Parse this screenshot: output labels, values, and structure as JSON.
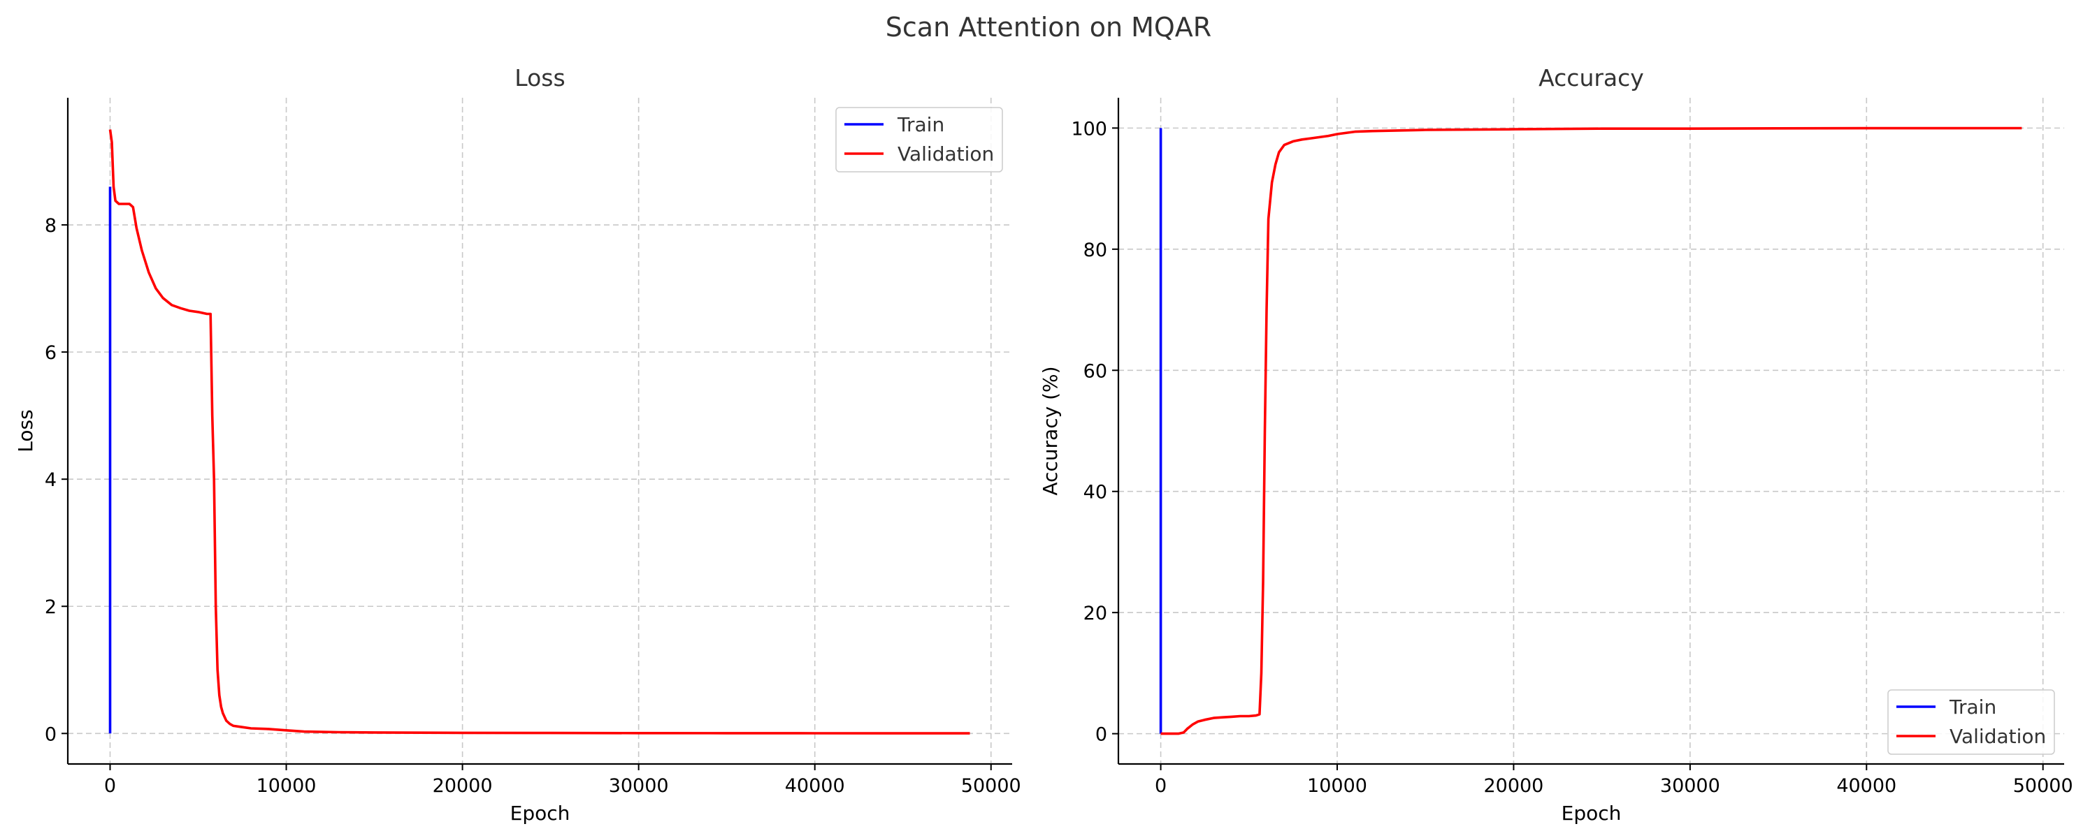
{
  "suptitle": "Scan Attention on MQAR",
  "colors": {
    "train": "#0000ff",
    "validation": "#ff0000",
    "grid": "#c8c8c8"
  },
  "chart_data": [
    {
      "type": "line",
      "title": "Loss",
      "xlabel": "Epoch",
      "ylabel": "Loss",
      "xlim": [
        -2400,
        51200
      ],
      "ylim": [
        -0.48,
        10.0
      ],
      "xticks": [
        0,
        10000,
        20000,
        30000,
        40000,
        50000
      ],
      "yticks": [
        0,
        2,
        4,
        6,
        8
      ],
      "grid": true,
      "legend_position": "top-right",
      "series": [
        {
          "name": "Train",
          "color": "#0000ff",
          "x": [
            0,
            0
          ],
          "y": [
            8.6,
            0
          ]
        },
        {
          "name": "Validation",
          "color": "#ff0000",
          "x": [
            0,
            100,
            200,
            300,
            500,
            800,
            1100,
            1300,
            1500,
            1800,
            2200,
            2600,
            3000,
            3500,
            4000,
            4500,
            5000,
            5500,
            5700,
            5800,
            5900,
            6000,
            6100,
            6200,
            6300,
            6400,
            6600,
            6800,
            7000,
            7500,
            8000,
            9000,
            10000,
            11000,
            13000,
            15000,
            20000,
            25000,
            30000,
            35000,
            40000,
            48800
          ],
          "y": [
            9.5,
            9.3,
            8.6,
            8.38,
            8.33,
            8.33,
            8.33,
            8.28,
            7.95,
            7.6,
            7.25,
            7.0,
            6.85,
            6.74,
            6.69,
            6.65,
            6.63,
            6.6,
            6.6,
            5.0,
            4.0,
            2.0,
            1.0,
            0.6,
            0.42,
            0.32,
            0.2,
            0.15,
            0.12,
            0.1,
            0.08,
            0.07,
            0.05,
            0.03,
            0.02,
            0.015,
            0.01,
            0.008,
            0.006,
            0.004,
            0.003,
            0.002
          ]
        }
      ]
    },
    {
      "type": "line",
      "title": "Accuracy",
      "xlabel": "Epoch",
      "ylabel": "Accuracy (%)",
      "xlim": [
        -2400,
        51200
      ],
      "ylim": [
        -5,
        105
      ],
      "xticks": [
        0,
        10000,
        20000,
        30000,
        40000,
        50000
      ],
      "yticks": [
        0,
        20,
        40,
        60,
        80,
        100
      ],
      "grid": true,
      "legend_position": "bottom-right",
      "series": [
        {
          "name": "Train",
          "color": "#0000ff",
          "x": [
            0,
            0
          ],
          "y": [
            100,
            0
          ]
        },
        {
          "name": "Validation",
          "color": "#ff0000",
          "x": [
            0,
            500,
            1000,
            1300,
            1500,
            1800,
            2100,
            2500,
            3000,
            3500,
            4000,
            4500,
            5000,
            5400,
            5600,
            5700,
            5800,
            5900,
            6000,
            6100,
            6200,
            6300,
            6500,
            6700,
            7000,
            7500,
            8000,
            8500,
            9000,
            9500,
            10000,
            11000,
            12000,
            15000,
            20000,
            25000,
            30000,
            35000,
            40000,
            48800
          ],
          "y": [
            0,
            0,
            0,
            0.2,
            0.8,
            1.5,
            2.0,
            2.3,
            2.6,
            2.7,
            2.8,
            2.9,
            2.9,
            3.0,
            3.2,
            10,
            25,
            50,
            70,
            85,
            88,
            91,
            94,
            96,
            97.2,
            97.8,
            98.1,
            98.3,
            98.5,
            98.7,
            99.0,
            99.4,
            99.5,
            99.7,
            99.8,
            99.9,
            99.9,
            99.95,
            99.97,
            99.98
          ]
        }
      ]
    }
  ]
}
